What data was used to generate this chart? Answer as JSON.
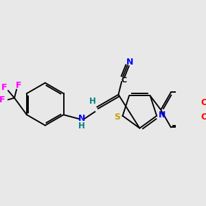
{
  "background_color": "#e8e8e8",
  "colors": {
    "bond": "#000000",
    "N": "#0000ff",
    "S": "#c8a000",
    "O": "#ff0000",
    "F": "#ff00ff",
    "H": "#008080",
    "C": "#000000"
  },
  "figsize": [
    3.0,
    3.0
  ],
  "dpi": 100
}
